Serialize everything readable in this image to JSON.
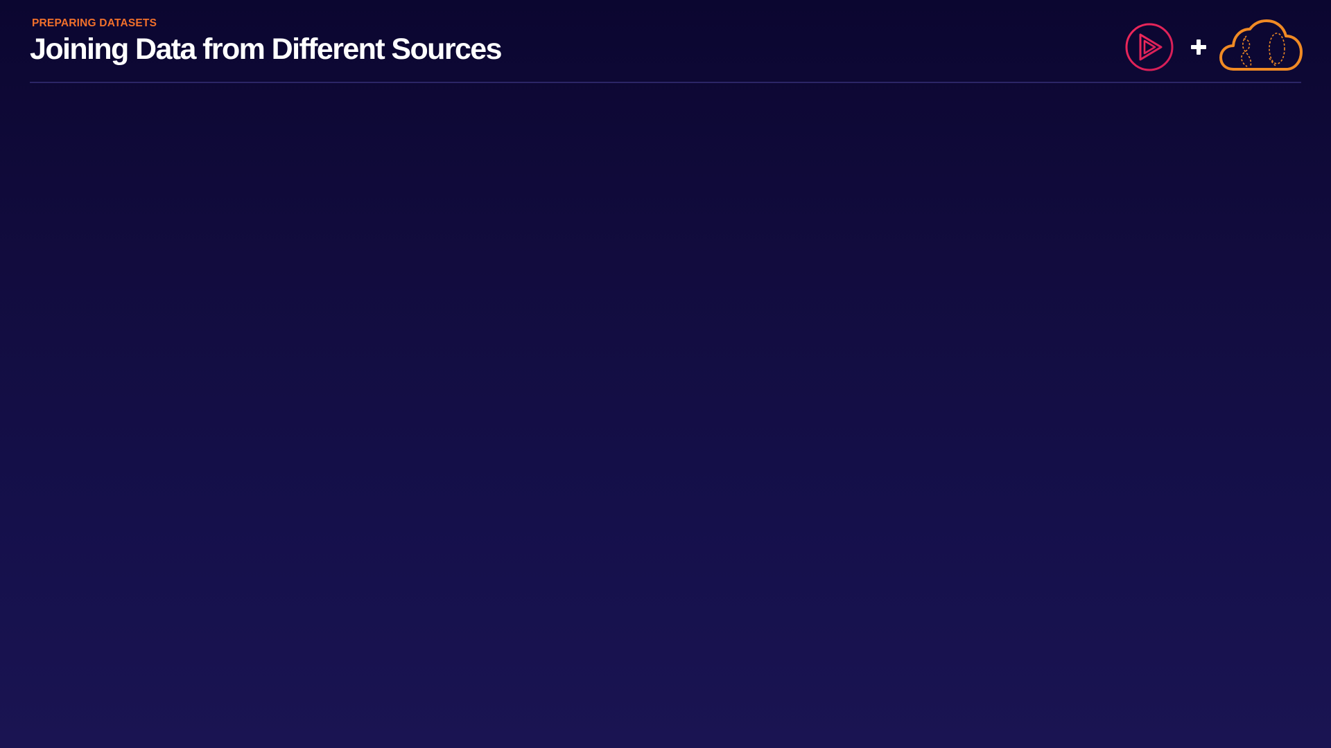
{
  "slide": {
    "section_label": "PREPARING DATASETS",
    "title": "Joining Data from Different Sources"
  },
  "logos": {
    "left_logo_icon": "play-triangle-circle-icon",
    "separator_icon": "plus-icon",
    "right_logo_icon": "cloud-icon"
  },
  "colors": {
    "background_top": "#0b0630",
    "background_bottom": "#1a1452",
    "accent_orange": "#f2702b",
    "logo_pink": "#e0215c",
    "title_white": "#ffffff",
    "divider": "#2b2566"
  }
}
